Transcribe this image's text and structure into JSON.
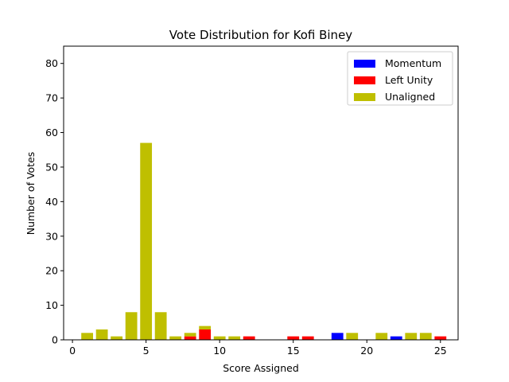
{
  "chart_data": {
    "type": "bar",
    "title": "Vote Distribution for Kofi Biney",
    "xlabel": "Score Assigned",
    "ylabel": "Number of Votes",
    "xlim": [
      -0.6,
      26.2
    ],
    "ylim": [
      0,
      85
    ],
    "xticks": [
      0,
      5,
      10,
      15,
      20,
      25
    ],
    "yticks": [
      0,
      10,
      20,
      30,
      40,
      50,
      60,
      70,
      80
    ],
    "stacked": true,
    "grid": false,
    "legend_position": "top-right",
    "series": [
      {
        "name": "Momentum",
        "color": "#0000ff",
        "points": [
          {
            "x": 18,
            "y": 2
          },
          {
            "x": 22,
            "y": 1
          }
        ]
      },
      {
        "name": "Left Unity",
        "color": "#ff0000",
        "points": [
          {
            "x": 8,
            "y": 1
          },
          {
            "x": 9,
            "y": 3
          },
          {
            "x": 12,
            "y": 1
          },
          {
            "x": 15,
            "y": 1
          },
          {
            "x": 16,
            "y": 1
          },
          {
            "x": 25,
            "y": 1
          }
        ]
      },
      {
        "name": "Unaligned",
        "color": "#bfbf00",
        "points": [
          {
            "x": 1,
            "y": 2
          },
          {
            "x": 2,
            "y": 3
          },
          {
            "x": 3,
            "y": 1
          },
          {
            "x": 4,
            "y": 8
          },
          {
            "x": 5,
            "y": 57
          },
          {
            "x": 6,
            "y": 8
          },
          {
            "x": 7,
            "y": 1
          },
          {
            "x": 8,
            "y": 1
          },
          {
            "x": 9,
            "y": 1
          },
          {
            "x": 10,
            "y": 1
          },
          {
            "x": 11,
            "y": 1
          },
          {
            "x": 19,
            "y": 2
          },
          {
            "x": 21,
            "y": 2
          },
          {
            "x": 23,
            "y": 2
          },
          {
            "x": 24,
            "y": 2
          }
        ]
      }
    ]
  }
}
